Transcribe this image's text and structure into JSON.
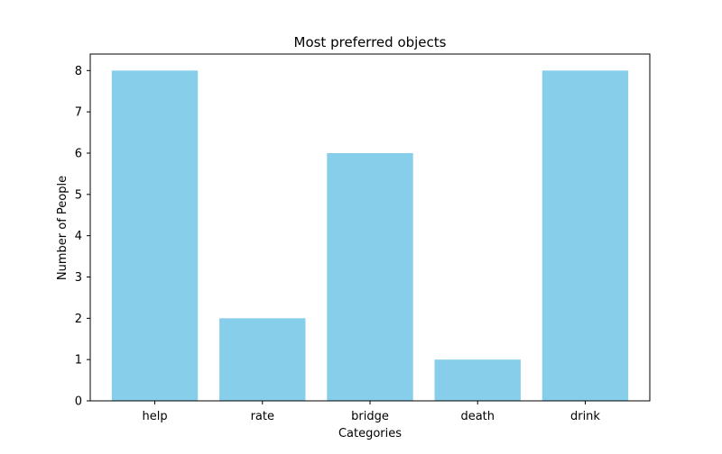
{
  "chart_data": {
    "type": "bar",
    "title": "Most preferred objects",
    "xlabel": "Categories",
    "ylabel": "Number of People",
    "categories": [
      "help",
      "rate",
      "bridge",
      "death",
      "drink"
    ],
    "values": [
      8,
      2,
      6,
      1,
      8
    ],
    "ylim": [
      0,
      8.4
    ],
    "yticks": [
      0,
      1,
      2,
      3,
      4,
      5,
      6,
      7,
      8
    ],
    "grid": false,
    "legend": "none",
    "bar_color": "#87CEEB"
  }
}
